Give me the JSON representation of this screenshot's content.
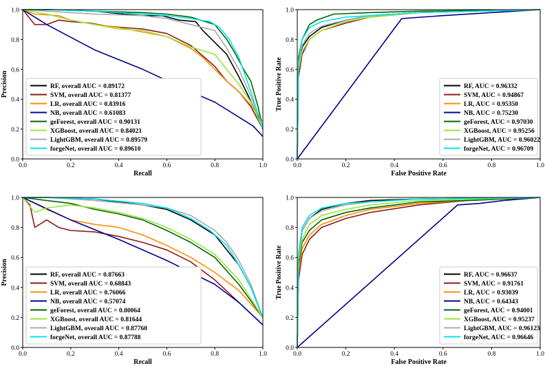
{
  "chart_data": [
    {
      "type": "line",
      "subtype": "precision-recall",
      "title": "",
      "xlabel": "Recall",
      "ylabel": "Precision",
      "xlim": [
        0,
        1
      ],
      "ylim": [
        0,
        1
      ],
      "xticks": [
        "0.0",
        "0.2",
        "0.4",
        "0.6",
        "0.8",
        "1.0"
      ],
      "yticks": [
        "0.0",
        "0.2",
        "0.4",
        "0.6",
        "0.8",
        "1.0"
      ],
      "grid": false,
      "legend_position": "bottom-left",
      "series": [
        {
          "name": "RF, overall AUC = 0.89172",
          "color": "#000000",
          "x": [
            0,
            0.05,
            0.12,
            0.3,
            0.42,
            0.5,
            0.58,
            0.65,
            0.72,
            0.75,
            0.8,
            0.85,
            0.9,
            0.94,
            0.96,
            0.98,
            1.0
          ],
          "y": [
            1,
            1,
            1,
            0.99,
            0.97,
            0.96,
            0.96,
            0.93,
            0.92,
            0.86,
            0.78,
            0.7,
            0.55,
            0.42,
            0.35,
            0.28,
            0.2
          ]
        },
        {
          "name": "SVM, overall AUC = 0.81377",
          "color": "#8b1a1a",
          "x": [
            0,
            0.05,
            0.1,
            0.15,
            0.2,
            0.28,
            0.35,
            0.42,
            0.5,
            0.6,
            0.7,
            0.8,
            0.85,
            0.9,
            0.95,
            1.0
          ],
          "y": [
            1,
            0.9,
            0.9,
            0.93,
            0.92,
            0.91,
            0.89,
            0.88,
            0.87,
            0.84,
            0.76,
            0.62,
            0.52,
            0.45,
            0.35,
            0.2
          ]
        },
        {
          "name": "LR, overall AUC = 0.83916",
          "color": "#ff8c00",
          "x": [
            0,
            0.05,
            0.15,
            0.2,
            0.3,
            0.4,
            0.5,
            0.6,
            0.7,
            0.75,
            0.8,
            0.85,
            0.9,
            0.95,
            1.0
          ],
          "y": [
            1,
            0.97,
            0.96,
            0.93,
            0.9,
            0.88,
            0.85,
            0.82,
            0.74,
            0.68,
            0.6,
            0.52,
            0.45,
            0.36,
            0.25
          ]
        },
        {
          "name": "NB, overall AUC = 0.61083",
          "color": "#00008b",
          "x": [
            0,
            0.1,
            0.3,
            0.5,
            0.7,
            0.8,
            0.9,
            0.96,
            1.0
          ],
          "y": [
            1,
            0.9,
            0.73,
            0.6,
            0.45,
            0.38,
            0.28,
            0.22,
            0.15
          ]
        },
        {
          "name": "geForest, overall AUC = 0.90131",
          "color": "#006400",
          "x": [
            0,
            0.1,
            0.3,
            0.5,
            0.6,
            0.7,
            0.8,
            0.85,
            0.88,
            0.92,
            0.95,
            0.98,
            1.0
          ],
          "y": [
            1,
            1,
            0.99,
            0.98,
            0.97,
            0.95,
            0.9,
            0.8,
            0.72,
            0.6,
            0.52,
            0.35,
            0.2
          ]
        },
        {
          "name": "XGBoost, overall AUC = 0.84021",
          "color": "#9ae53b",
          "x": [
            0,
            0.1,
            0.2,
            0.3,
            0.4,
            0.5,
            0.6,
            0.7,
            0.8,
            0.85,
            0.9,
            0.95,
            1.0
          ],
          "y": [
            1,
            0.97,
            0.93,
            0.9,
            0.87,
            0.86,
            0.82,
            0.75,
            0.7,
            0.6,
            0.5,
            0.38,
            0.2
          ]
        },
        {
          "name": "LightGBM, overall AUC = 0.89579",
          "color": "#a9a9a9",
          "x": [
            0,
            0.1,
            0.3,
            0.5,
            0.6,
            0.7,
            0.75,
            0.8,
            0.85,
            0.9,
            0.95,
            1.0
          ],
          "y": [
            1,
            0.99,
            0.97,
            0.96,
            0.94,
            0.9,
            0.88,
            0.86,
            0.74,
            0.6,
            0.42,
            0.22
          ]
        },
        {
          "name": "forgeNet, overall AUC = 0.89610",
          "color": "#00e5ee",
          "x": [
            0,
            0.1,
            0.3,
            0.5,
            0.6,
            0.7,
            0.78,
            0.82,
            0.86,
            0.9,
            0.95,
            1.0
          ],
          "y": [
            1,
            1,
            0.99,
            0.97,
            0.96,
            0.94,
            0.92,
            0.88,
            0.8,
            0.68,
            0.45,
            0.2
          ]
        }
      ]
    },
    {
      "type": "line",
      "subtype": "roc",
      "title": "",
      "xlabel": "False Positive Rate",
      "ylabel": "True Positive Rate",
      "xlim": [
        0,
        1
      ],
      "ylim": [
        0,
        1
      ],
      "xticks": [
        "0.0",
        "0.2",
        "0.4",
        "0.6",
        "0.8",
        "1.0"
      ],
      "yticks": [
        "0.0",
        "0.2",
        "0.4",
        "0.6",
        "0.8",
        "1.0"
      ],
      "grid": false,
      "legend_position": "bottom-right",
      "series": [
        {
          "name": "RF, AUC = 0.96332",
          "color": "#000000",
          "x": [
            0,
            0.005,
            0.02,
            0.05,
            0.1,
            0.2,
            0.3,
            0.5,
            1.0
          ],
          "y": [
            0,
            0.6,
            0.75,
            0.82,
            0.88,
            0.93,
            0.96,
            0.98,
            1.0
          ]
        },
        {
          "name": "SVM, AUC = 0.94867",
          "color": "#8b1a1a",
          "x": [
            0,
            0.005,
            0.02,
            0.05,
            0.1,
            0.2,
            0.3,
            0.5,
            1.0
          ],
          "y": [
            0,
            0.55,
            0.7,
            0.8,
            0.86,
            0.91,
            0.95,
            0.98,
            1.0
          ]
        },
        {
          "name": "LR, AUC = 0.95350",
          "color": "#ff8c00",
          "x": [
            0,
            0.005,
            0.02,
            0.05,
            0.1,
            0.2,
            0.3,
            0.5,
            1.0
          ],
          "y": [
            0,
            0.6,
            0.72,
            0.8,
            0.86,
            0.92,
            0.95,
            0.98,
            1.0
          ]
        },
        {
          "name": "NB, AUC = 0.75230",
          "color": "#00008b",
          "x": [
            0,
            0.43,
            0.6,
            0.8,
            1.0
          ],
          "y": [
            0,
            0.94,
            0.96,
            0.98,
            1.0
          ]
        },
        {
          "name": "geForest, AUC = 0.97030",
          "color": "#006400",
          "x": [
            0,
            0.005,
            0.02,
            0.05,
            0.08,
            0.15,
            0.3,
            0.5,
            1.0
          ],
          "y": [
            0,
            0.68,
            0.8,
            0.9,
            0.93,
            0.97,
            0.98,
            0.99,
            1.0
          ]
        },
        {
          "name": "XGBoost, AUC = 0.95256",
          "color": "#9ae53b",
          "x": [
            0,
            0.005,
            0.02,
            0.05,
            0.1,
            0.2,
            0.3,
            0.5,
            1.0
          ],
          "y": [
            0,
            0.6,
            0.72,
            0.8,
            0.86,
            0.92,
            0.95,
            0.98,
            1.0
          ]
        },
        {
          "name": "LightGBM, AUC = 0.96022",
          "color": "#a9a9a9",
          "x": [
            0,
            0.005,
            0.02,
            0.05,
            0.1,
            0.2,
            0.3,
            0.5,
            1.0
          ],
          "y": [
            0,
            0.64,
            0.76,
            0.84,
            0.89,
            0.93,
            0.96,
            0.98,
            1.0
          ]
        },
        {
          "name": "forgeNet, AUC = 0.96709",
          "color": "#00e5ee",
          "x": [
            0,
            0.005,
            0.02,
            0.05,
            0.1,
            0.2,
            0.3,
            0.5,
            1.0
          ],
          "y": [
            0,
            0.65,
            0.8,
            0.88,
            0.92,
            0.95,
            0.96,
            0.98,
            1.0
          ]
        }
      ]
    },
    {
      "type": "line",
      "subtype": "precision-recall",
      "title": "",
      "xlabel": "Recall",
      "ylabel": "Precision",
      "xlim": [
        0,
        1
      ],
      "ylim": [
        0,
        1
      ],
      "xticks": [
        "0.0",
        "0.2",
        "0.4",
        "0.6",
        "0.8",
        "1.0"
      ],
      "yticks": [
        "0.0",
        "0.2",
        "0.4",
        "0.6",
        "0.8",
        "1.0"
      ],
      "grid": false,
      "legend_position": "bottom-left",
      "series": [
        {
          "name": "RF, overall AUC = 0.87663",
          "color": "#000000",
          "x": [
            0,
            0.1,
            0.3,
            0.5,
            0.6,
            0.7,
            0.8,
            0.85,
            0.9,
            0.95,
            1.0
          ],
          "y": [
            1,
            1,
            0.99,
            0.95,
            0.92,
            0.85,
            0.75,
            0.65,
            0.55,
            0.4,
            0.2
          ]
        },
        {
          "name": "SVM, overall AUC = 0.68843",
          "color": "#8b1a1a",
          "x": [
            0,
            0.03,
            0.05,
            0.1,
            0.15,
            0.2,
            0.3,
            0.4,
            0.5,
            0.6,
            0.7,
            0.8,
            0.9,
            1.0
          ],
          "y": [
            1,
            0.95,
            0.8,
            0.85,
            0.8,
            0.78,
            0.77,
            0.74,
            0.7,
            0.65,
            0.57,
            0.45,
            0.3,
            0.15
          ]
        },
        {
          "name": "LR, overall AUC = 0.76066",
          "color": "#ff8c00",
          "x": [
            0,
            0.05,
            0.1,
            0.2,
            0.3,
            0.4,
            0.5,
            0.6,
            0.7,
            0.8,
            0.9,
            1.0
          ],
          "y": [
            1,
            0.96,
            0.92,
            0.85,
            0.82,
            0.8,
            0.75,
            0.68,
            0.6,
            0.5,
            0.38,
            0.2
          ]
        },
        {
          "name": "NB, overall AUC = 0.57074",
          "color": "#00008b",
          "x": [
            0,
            0.2,
            0.4,
            0.6,
            0.8,
            0.9,
            1.0
          ],
          "y": [
            1,
            0.85,
            0.72,
            0.58,
            0.42,
            0.3,
            0.15
          ]
        },
        {
          "name": "geForest, overall AUC = 0.80064",
          "color": "#006400",
          "x": [
            0,
            0.1,
            0.2,
            0.3,
            0.4,
            0.5,
            0.6,
            0.7,
            0.8,
            0.9,
            1.0
          ],
          "y": [
            1,
            0.98,
            0.96,
            0.92,
            0.89,
            0.85,
            0.78,
            0.7,
            0.6,
            0.42,
            0.2
          ]
        },
        {
          "name": "XGBoost, overall AUC = 0.81644",
          "color": "#9ae53b",
          "x": [
            0,
            0.05,
            0.1,
            0.2,
            0.3,
            0.4,
            0.5,
            0.6,
            0.7,
            0.8,
            0.9,
            1.0
          ],
          "y": [
            1,
            0.9,
            0.93,
            0.95,
            0.93,
            0.9,
            0.86,
            0.8,
            0.72,
            0.62,
            0.45,
            0.2
          ]
        },
        {
          "name": "LightGBM, overall AUC = 0.87760",
          "color": "#a9a9a9",
          "x": [
            0,
            0.1,
            0.3,
            0.5,
            0.6,
            0.7,
            0.8,
            0.85,
            0.9,
            0.95,
            1.0
          ],
          "y": [
            1,
            1,
            0.98,
            0.95,
            0.93,
            0.88,
            0.78,
            0.7,
            0.58,
            0.42,
            0.2
          ]
        },
        {
          "name": "forgeNet, overall AUC = 0.87788",
          "color": "#00e5ee",
          "x": [
            0,
            0.1,
            0.3,
            0.5,
            0.6,
            0.7,
            0.78,
            0.85,
            0.9,
            0.95,
            1.0
          ],
          "y": [
            1,
            1,
            0.99,
            0.96,
            0.93,
            0.86,
            0.78,
            0.68,
            0.55,
            0.4,
            0.2
          ]
        }
      ]
    },
    {
      "type": "line",
      "subtype": "roc",
      "title": "",
      "xlabel": "False Positive Rate",
      "ylabel": "True Positive Rate",
      "xlim": [
        0,
        1
      ],
      "ylim": [
        0,
        1
      ],
      "xticks": [
        "0.0",
        "0.2",
        "0.4",
        "0.6",
        "0.8",
        "1.0"
      ],
      "yticks": [
        "0.0",
        "0.2",
        "0.4",
        "0.6",
        "0.8",
        "1.0"
      ],
      "grid": false,
      "legend_position": "bottom-right",
      "series": [
        {
          "name": "RF, AUC = 0.96637",
          "color": "#000000",
          "x": [
            0,
            0.005,
            0.02,
            0.05,
            0.1,
            0.2,
            0.3,
            0.5,
            1.0
          ],
          "y": [
            0,
            0.6,
            0.78,
            0.86,
            0.92,
            0.96,
            0.98,
            0.99,
            1.0
          ]
        },
        {
          "name": "SVM, AUC = 0.91761",
          "color": "#8b1a1a",
          "x": [
            0,
            0.005,
            0.02,
            0.05,
            0.1,
            0.2,
            0.3,
            0.5,
            0.7,
            1.0
          ],
          "y": [
            0,
            0.45,
            0.62,
            0.72,
            0.8,
            0.86,
            0.9,
            0.95,
            0.98,
            1.0
          ]
        },
        {
          "name": "LR, AUC = 0.93039",
          "color": "#ff8c00",
          "x": [
            0,
            0.005,
            0.02,
            0.05,
            0.1,
            0.2,
            0.3,
            0.5,
            0.7,
            1.0
          ],
          "y": [
            0,
            0.5,
            0.66,
            0.75,
            0.82,
            0.88,
            0.92,
            0.96,
            0.98,
            1.0
          ]
        },
        {
          "name": "NB, AUC = 0.64343",
          "color": "#00008b",
          "x": [
            0,
            0.66,
            0.75,
            0.85,
            1.0
          ],
          "y": [
            0,
            0.95,
            0.96,
            0.98,
            1.0
          ]
        },
        {
          "name": "geForest, AUC = 0.94001",
          "color": "#006400",
          "x": [
            0,
            0.005,
            0.02,
            0.05,
            0.1,
            0.2,
            0.3,
            0.5,
            0.7,
            1.0
          ],
          "y": [
            0,
            0.55,
            0.7,
            0.78,
            0.85,
            0.9,
            0.93,
            0.97,
            0.98,
            1.0
          ]
        },
        {
          "name": "XGBoost, AUC = 0.95237",
          "color": "#9ae53b",
          "x": [
            0,
            0.005,
            0.02,
            0.05,
            0.1,
            0.2,
            0.3,
            0.5,
            1.0
          ],
          "y": [
            0,
            0.58,
            0.72,
            0.82,
            0.88,
            0.92,
            0.95,
            0.98,
            1.0
          ]
        },
        {
          "name": "LightGBM, AUC = 0.96123",
          "color": "#a9a9a9",
          "x": [
            0,
            0.005,
            0.02,
            0.05,
            0.1,
            0.2,
            0.3,
            0.5,
            1.0
          ],
          "y": [
            0,
            0.62,
            0.78,
            0.86,
            0.91,
            0.95,
            0.97,
            0.99,
            1.0
          ]
        },
        {
          "name": "forgeNet, AUC = 0.96646",
          "color": "#00e5ee",
          "x": [
            0,
            0.005,
            0.02,
            0.05,
            0.1,
            0.2,
            0.3,
            0.5,
            1.0
          ],
          "y": [
            0,
            0.62,
            0.8,
            0.88,
            0.93,
            0.96,
            0.97,
            0.99,
            1.0
          ]
        }
      ]
    }
  ]
}
